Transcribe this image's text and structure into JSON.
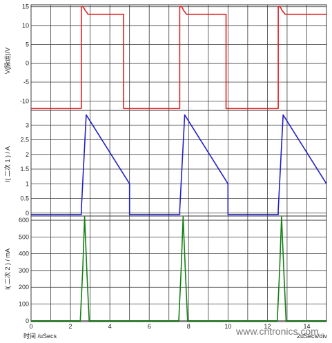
{
  "chart_data": [
    {
      "type": "line",
      "ylabel": "V(脉运)/V",
      "xlim": [
        0,
        15
      ],
      "ylim": [
        -12.5,
        15.5
      ],
      "yticks": [
        15,
        10,
        5,
        0,
        -5,
        -10
      ],
      "grid": true,
      "series": [
        {
          "color": "#e02020",
          "x": [
            0,
            2.55,
            2.55,
            2.65,
            2.75,
            2.9,
            4.7,
            4.7,
            5.0,
            5.0,
            7.55,
            7.55,
            7.65,
            7.75,
            7.9,
            9.9,
            9.9,
            10.0,
            10.0,
            12.55,
            12.55,
            12.65,
            12.75,
            12.9,
            15.0
          ],
          "y": [
            -12,
            -12,
            15,
            15,
            14,
            13,
            13,
            -12,
            -12,
            -12,
            -12,
            15,
            15,
            14,
            13,
            13,
            -12,
            -12,
            -12,
            -12,
            15,
            15,
            14,
            13,
            13
          ]
        }
      ]
    },
    {
      "type": "line",
      "ylabel": "I(    二次 1    ) / A",
      "xlim": [
        0,
        15
      ],
      "ylim": [
        -0.1,
        3.5
      ],
      "yticks": [
        3,
        2.5,
        2,
        1.5,
        1,
        0.5,
        0
      ],
      "grid": true,
      "series": [
        {
          "color": "#2020c8",
          "x": [
            0,
            2.55,
            2.55,
            2.8,
            5.0,
            5.0,
            7.55,
            7.55,
            7.8,
            10.0,
            10.0,
            12.55,
            12.55,
            12.8,
            15.0
          ],
          "y": [
            -0.05,
            -0.05,
            0.1,
            3.35,
            1.0,
            -0.05,
            -0.05,
            0.1,
            3.35,
            1.0,
            -0.05,
            -0.05,
            0.1,
            3.35,
            1.0
          ]
        }
      ]
    },
    {
      "type": "line",
      "ylabel": "I(    二次 2    ) / mA",
      "xlabel": "时间 /uSecs",
      "xlim": [
        0,
        15
      ],
      "ylim": [
        -5,
        625
      ],
      "yticks": [
        600,
        500,
        400,
        300,
        200,
        100,
        0
      ],
      "xticks": [
        0,
        2,
        4,
        6,
        8,
        10,
        12,
        14
      ],
      "grid": true,
      "series": [
        {
          "color": "#128012",
          "x": [
            0,
            2.5,
            2.62,
            2.72,
            2.84,
            2.95,
            7.5,
            7.62,
            7.72,
            7.84,
            7.95,
            12.5,
            12.62,
            12.72,
            12.84,
            12.95,
            15.0
          ],
          "y": [
            0,
            0,
            300,
            620,
            280,
            0,
            0,
            300,
            620,
            280,
            0,
            0,
            300,
            620,
            280,
            0,
            0
          ]
        }
      ]
    }
  ],
  "footer": {
    "time_label": "时间 /uSecs",
    "div_label": "2uSecs/div"
  },
  "watermark": "www.cntronics.com"
}
